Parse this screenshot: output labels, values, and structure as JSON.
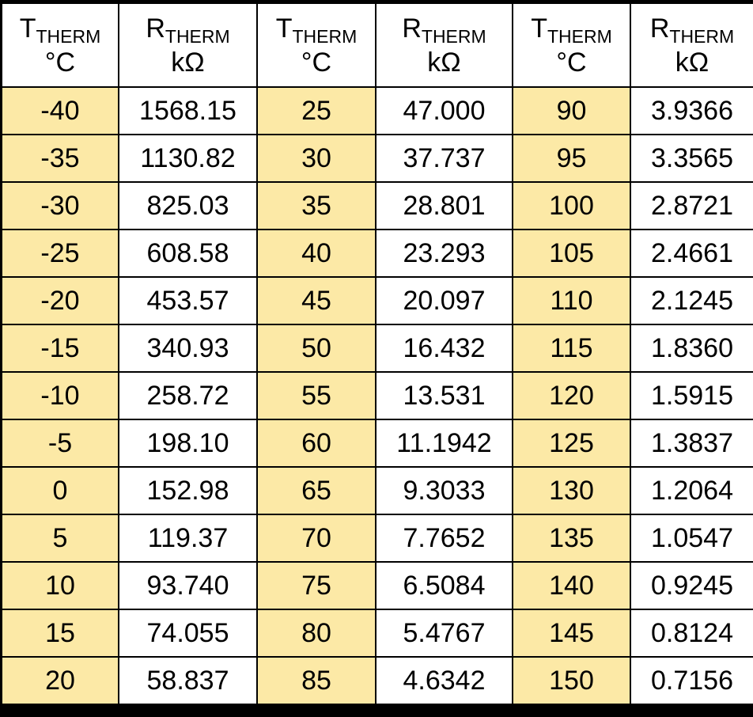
{
  "table": {
    "header": [
      {
        "main": "T",
        "sub": "THERM",
        "unit": "°C"
      },
      {
        "main": "R",
        "sub": "THERM",
        "unit": "kΩ"
      },
      {
        "main": "T",
        "sub": "THERM",
        "unit": "°C"
      },
      {
        "main": "R",
        "sub": "THERM",
        "unit": "kΩ"
      },
      {
        "main": "T",
        "sub": "THERM",
        "unit": "°C"
      },
      {
        "main": "R",
        "sub": "THERM",
        "unit": "kΩ"
      }
    ],
    "rows": [
      [
        "-40",
        "1568.15",
        "25",
        "47.000",
        "90",
        "3.9366"
      ],
      [
        "-35",
        "1130.82",
        "30",
        "37.737",
        "95",
        "3.3565"
      ],
      [
        "-30",
        "825.03",
        "35",
        "28.801",
        "100",
        "2.8721"
      ],
      [
        "-25",
        "608.58",
        "40",
        "23.293",
        "105",
        "2.4661"
      ],
      [
        "-20",
        "453.57",
        "45",
        "20.097",
        "110",
        "2.1245"
      ],
      [
        "-15",
        "340.93",
        "50",
        "16.432",
        "115",
        "1.8360"
      ],
      [
        "-10",
        "258.72",
        "55",
        "13.531",
        "120",
        "1.5915"
      ],
      [
        "-5",
        "198.10",
        "60",
        "11.1942",
        "125",
        "1.3837"
      ],
      [
        "0",
        "152.98",
        "65",
        "9.3033",
        "130",
        "1.2064"
      ],
      [
        "5",
        "119.37",
        "70",
        "7.7652",
        "135",
        "1.0547"
      ],
      [
        "10",
        "93.740",
        "75",
        "6.5084",
        "140",
        "0.9245"
      ],
      [
        "15",
        "74.055",
        "80",
        "5.4767",
        "145",
        "0.8124"
      ],
      [
        "20",
        "58.837",
        "85",
        "4.6342",
        "150",
        "0.7156"
      ]
    ]
  }
}
